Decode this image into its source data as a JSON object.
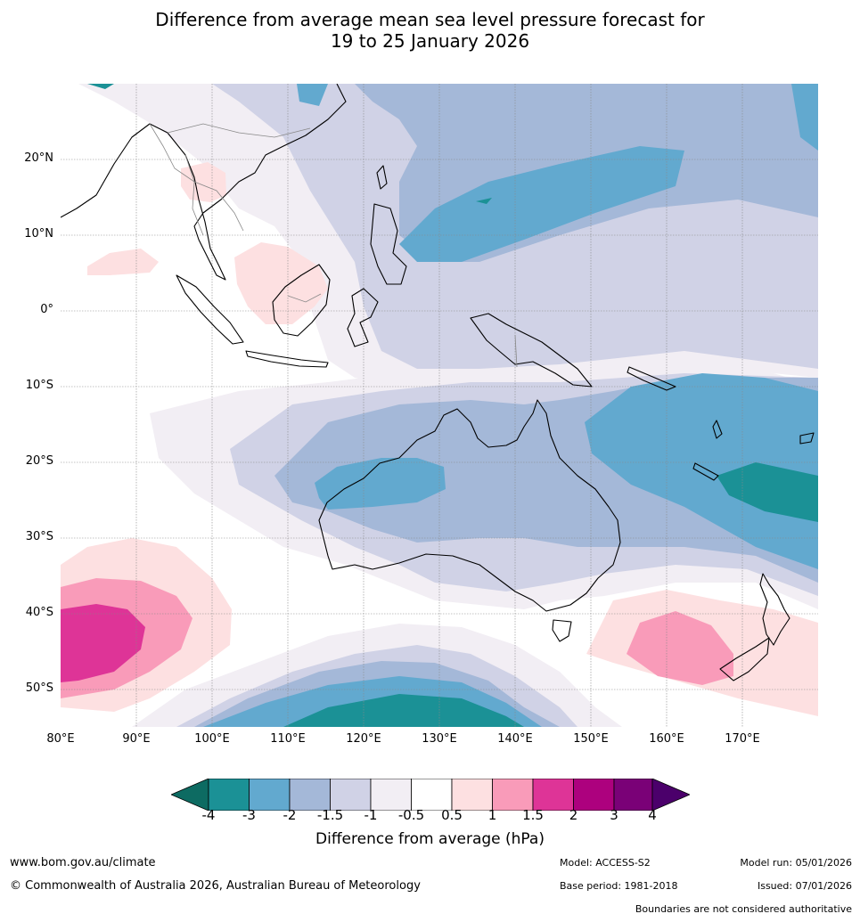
{
  "title_line1": "Difference from average mean sea level pressure forecast for",
  "title_line2": "19 to 25 January 2026",
  "map": {
    "region": "Australia, Maritime Continent and South-West Pacific",
    "lat_labels": [
      "20°N",
      "10°N",
      "0°",
      "10°S",
      "20°S",
      "30°S",
      "40°S",
      "50°S"
    ],
    "lon_labels": [
      "80°E",
      "90°E",
      "100°E",
      "110°E",
      "120°E",
      "130°E",
      "140°E",
      "150°E",
      "160°E",
      "170°E"
    ]
  },
  "legend": {
    "ticks": [
      "-4",
      "-3",
      "-2",
      "-1.5",
      "-1",
      "-0.5",
      "0.5",
      "1",
      "1.5",
      "2",
      "3",
      "4"
    ],
    "colors": [
      "#0d6b62",
      "#1b9196",
      "#62a9cf",
      "#a4b8d8",
      "#d0d2e6",
      "#f2eef4",
      "#ffffff",
      "#fde0e1",
      "#f99bb9",
      "#de3497",
      "#ad017e",
      "#7a0177",
      "#4b006b"
    ],
    "label": "Difference from average (hPa)"
  },
  "footer": {
    "website": "www.bom.gov.au/climate",
    "copyright": "© Commonwealth of Australia 2026, Australian Bureau of Meteorology",
    "model": "Model: ACCESS-S2",
    "base_period": "Base period: 1981-2018",
    "model_run": "Model run: 05/01/2026",
    "issued": "Issued: 07/01/2026",
    "disclaimer": "Boundaries are not considered authoritative"
  }
}
